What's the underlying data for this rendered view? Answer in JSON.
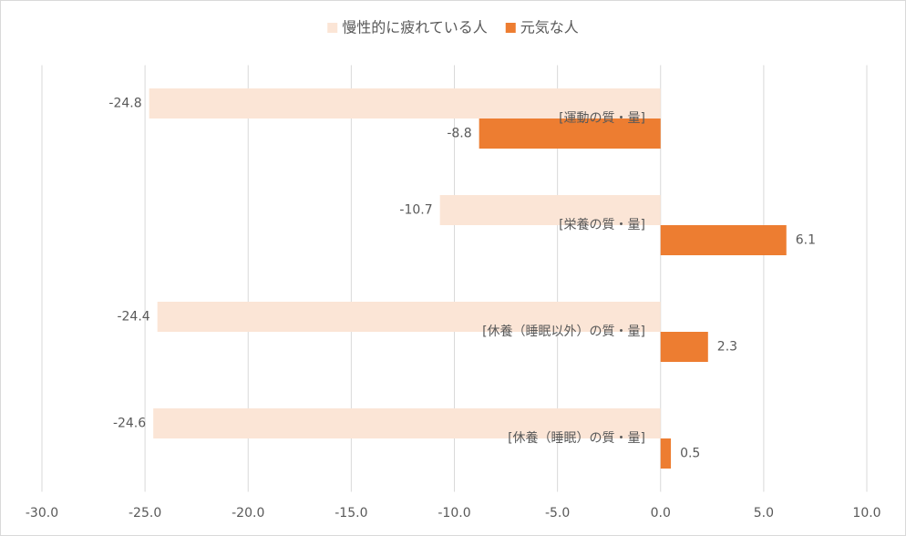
{
  "chart_data": {
    "type": "barh",
    "categories": [
      "[運動の質・量]",
      "[栄養の質・量]",
      "[休養（睡眠以外）の質・量]",
      "[休養（睡眠）の質・量]"
    ],
    "series": [
      {
        "name": "慢性的に疲れている人",
        "color": "#fbe5d6",
        "values": [
          -24.8,
          -10.7,
          -24.4,
          -24.6
        ]
      },
      {
        "name": "元気な人",
        "color": "#ed7d31",
        "values": [
          -8.8,
          6.1,
          2.3,
          0.5
        ]
      }
    ],
    "xlim": [
      -30,
      10
    ],
    "xticks": [
      {
        "value": -30,
        "label": "-30.0"
      },
      {
        "value": -25,
        "label": "-25.0"
      },
      {
        "value": -20,
        "label": "-20.0"
      },
      {
        "value": -15,
        "label": "-15.0"
      },
      {
        "value": -10,
        "label": "-10.0"
      },
      {
        "value": -5,
        "label": "-5.0"
      },
      {
        "value": 0,
        "label": "0.0"
      },
      {
        "value": 5,
        "label": "5.0"
      },
      {
        "value": 10,
        "label": "10.0"
      }
    ],
    "grid": true,
    "legend": "top"
  }
}
